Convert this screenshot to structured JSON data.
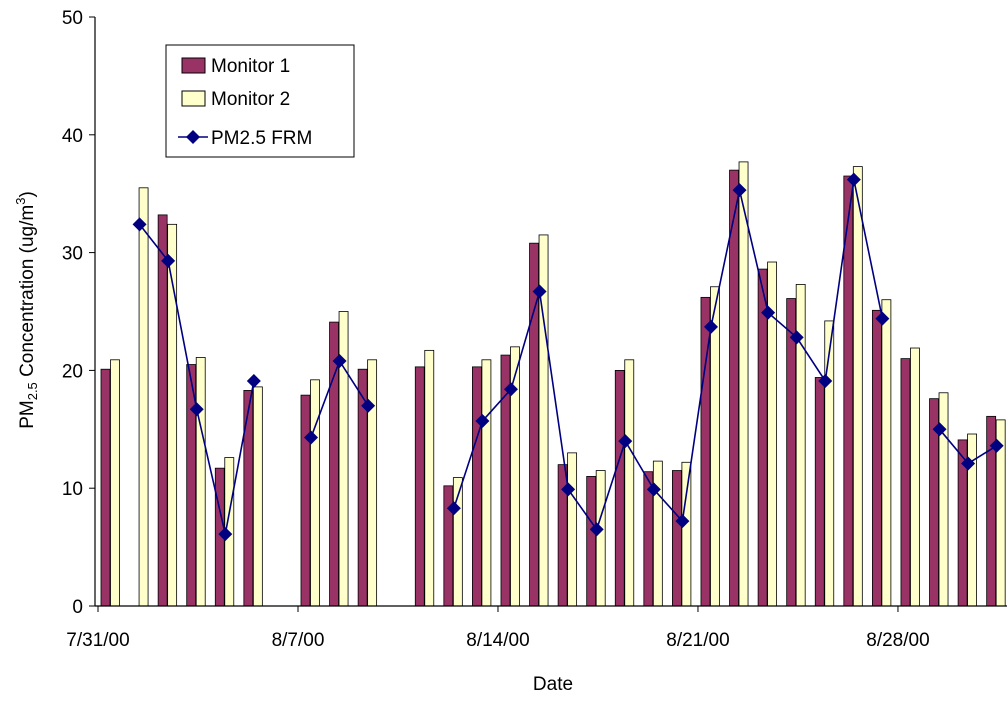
{
  "chart_data": {
    "type": "bar",
    "xlabel": "Date",
    "ylabel_prefix": "PM",
    "ylabel_sub": "2.5",
    "ylabel_main": " Concentration (ug/m",
    "ylabel_sup": "3",
    "ylabel_close": ")",
    "ylim": [
      0,
      50
    ],
    "yticks": [
      0,
      10,
      20,
      30,
      40,
      50
    ],
    "grid": false,
    "legend_position": "top-left",
    "x_tick_labels": [
      {
        "day": 0,
        "label": "7/31/00"
      },
      {
        "day": 7,
        "label": "8/7/00"
      },
      {
        "day": 14,
        "label": "8/14/00"
      },
      {
        "day": 21,
        "label": "8/21/00"
      },
      {
        "day": 28,
        "label": "8/28/00"
      }
    ],
    "x_day_range": [
      0,
      31
    ],
    "series": [
      {
        "name": "Monitor 1",
        "kind": "bar",
        "color": "#993366",
        "points": [
          {
            "day": 0,
            "value": 20.1
          },
          {
            "day": 2,
            "value": 33.2
          },
          {
            "day": 3,
            "value": 20.5
          },
          {
            "day": 4,
            "value": 11.7
          },
          {
            "day": 5,
            "value": 18.3
          },
          {
            "day": 7,
            "value": 17.9
          },
          {
            "day": 8,
            "value": 24.1
          },
          {
            "day": 9,
            "value": 20.1
          },
          {
            "day": 11,
            "value": 20.3
          },
          {
            "day": 12,
            "value": 10.2
          },
          {
            "day": 13,
            "value": 20.3
          },
          {
            "day": 14,
            "value": 21.3
          },
          {
            "day": 15,
            "value": 30.8
          },
          {
            "day": 16,
            "value": 12.0
          },
          {
            "day": 17,
            "value": 11.0
          },
          {
            "day": 18,
            "value": 20.0
          },
          {
            "day": 19,
            "value": 11.4
          },
          {
            "day": 20,
            "value": 11.5
          },
          {
            "day": 21,
            "value": 26.2
          },
          {
            "day": 22,
            "value": 37.0
          },
          {
            "day": 23,
            "value": 28.6
          },
          {
            "day": 24,
            "value": 26.1
          },
          {
            "day": 25,
            "value": 19.4
          },
          {
            "day": 26,
            "value": 36.5
          },
          {
            "day": 27,
            "value": 25.1
          },
          {
            "day": 28,
            "value": 21.0
          },
          {
            "day": 29,
            "value": 17.6
          },
          {
            "day": 30,
            "value": 14.1
          },
          {
            "day": 31,
            "value": 16.1
          }
        ]
      },
      {
        "name": "Monitor 2",
        "kind": "bar",
        "color": "#FFFFCC",
        "points": [
          {
            "day": 0,
            "value": 20.9
          },
          {
            "day": 1,
            "value": 35.5
          },
          {
            "day": 2,
            "value": 32.4
          },
          {
            "day": 3,
            "value": 21.1
          },
          {
            "day": 4,
            "value": 12.6
          },
          {
            "day": 5,
            "value": 18.6
          },
          {
            "day": 7,
            "value": 19.2
          },
          {
            "day": 8,
            "value": 25.0
          },
          {
            "day": 9,
            "value": 20.9
          },
          {
            "day": 11,
            "value": 21.7
          },
          {
            "day": 12,
            "value": 10.9
          },
          {
            "day": 13,
            "value": 20.9
          },
          {
            "day": 14,
            "value": 22.0
          },
          {
            "day": 15,
            "value": 31.5
          },
          {
            "day": 16,
            "value": 13.0
          },
          {
            "day": 17,
            "value": 11.5
          },
          {
            "day": 18,
            "value": 20.9
          },
          {
            "day": 19,
            "value": 12.3
          },
          {
            "day": 20,
            "value": 12.2
          },
          {
            "day": 21,
            "value": 27.1
          },
          {
            "day": 22,
            "value": 37.7
          },
          {
            "day": 23,
            "value": 29.2
          },
          {
            "day": 24,
            "value": 27.3
          },
          {
            "day": 25,
            "value": 24.2
          },
          {
            "day": 26,
            "value": 37.3
          },
          {
            "day": 27,
            "value": 26.0
          },
          {
            "day": 28,
            "value": 21.9
          },
          {
            "day": 29,
            "value": 18.1
          },
          {
            "day": 30,
            "value": 14.6
          },
          {
            "day": 31,
            "value": 15.8
          }
        ]
      },
      {
        "name": "PM2.5 FRM",
        "kind": "line",
        "color": "#000080",
        "points": [
          {
            "day": 1,
            "value": 32.4
          },
          {
            "day": 2,
            "value": 29.3
          },
          {
            "day": 3,
            "value": 16.7
          },
          {
            "day": 4,
            "value": 6.1
          },
          {
            "day": 5,
            "value": 19.1
          },
          null,
          {
            "day": 7,
            "value": 14.3
          },
          {
            "day": 8,
            "value": 20.8
          },
          {
            "day": 9,
            "value": 17.0
          },
          null,
          {
            "day": 12,
            "value": 8.3
          },
          {
            "day": 13,
            "value": 15.7
          },
          {
            "day": 14,
            "value": 18.4
          },
          {
            "day": 15,
            "value": 26.7
          },
          {
            "day": 16,
            "value": 9.9
          },
          {
            "day": 17,
            "value": 6.5
          },
          {
            "day": 18,
            "value": 14.0
          },
          {
            "day": 19,
            "value": 9.9
          },
          {
            "day": 20,
            "value": 7.2
          },
          {
            "day": 21,
            "value": 23.7
          },
          {
            "day": 22,
            "value": 35.3
          },
          {
            "day": 23,
            "value": 24.9
          },
          {
            "day": 24,
            "value": 22.8
          },
          {
            "day": 25,
            "value": 19.1
          },
          {
            "day": 26,
            "value": 36.2
          },
          {
            "day": 27,
            "value": 24.4
          },
          null,
          {
            "day": 29,
            "value": 15.0
          },
          {
            "day": 30,
            "value": 12.1
          },
          {
            "day": 31,
            "value": 13.6
          }
        ]
      }
    ]
  }
}
